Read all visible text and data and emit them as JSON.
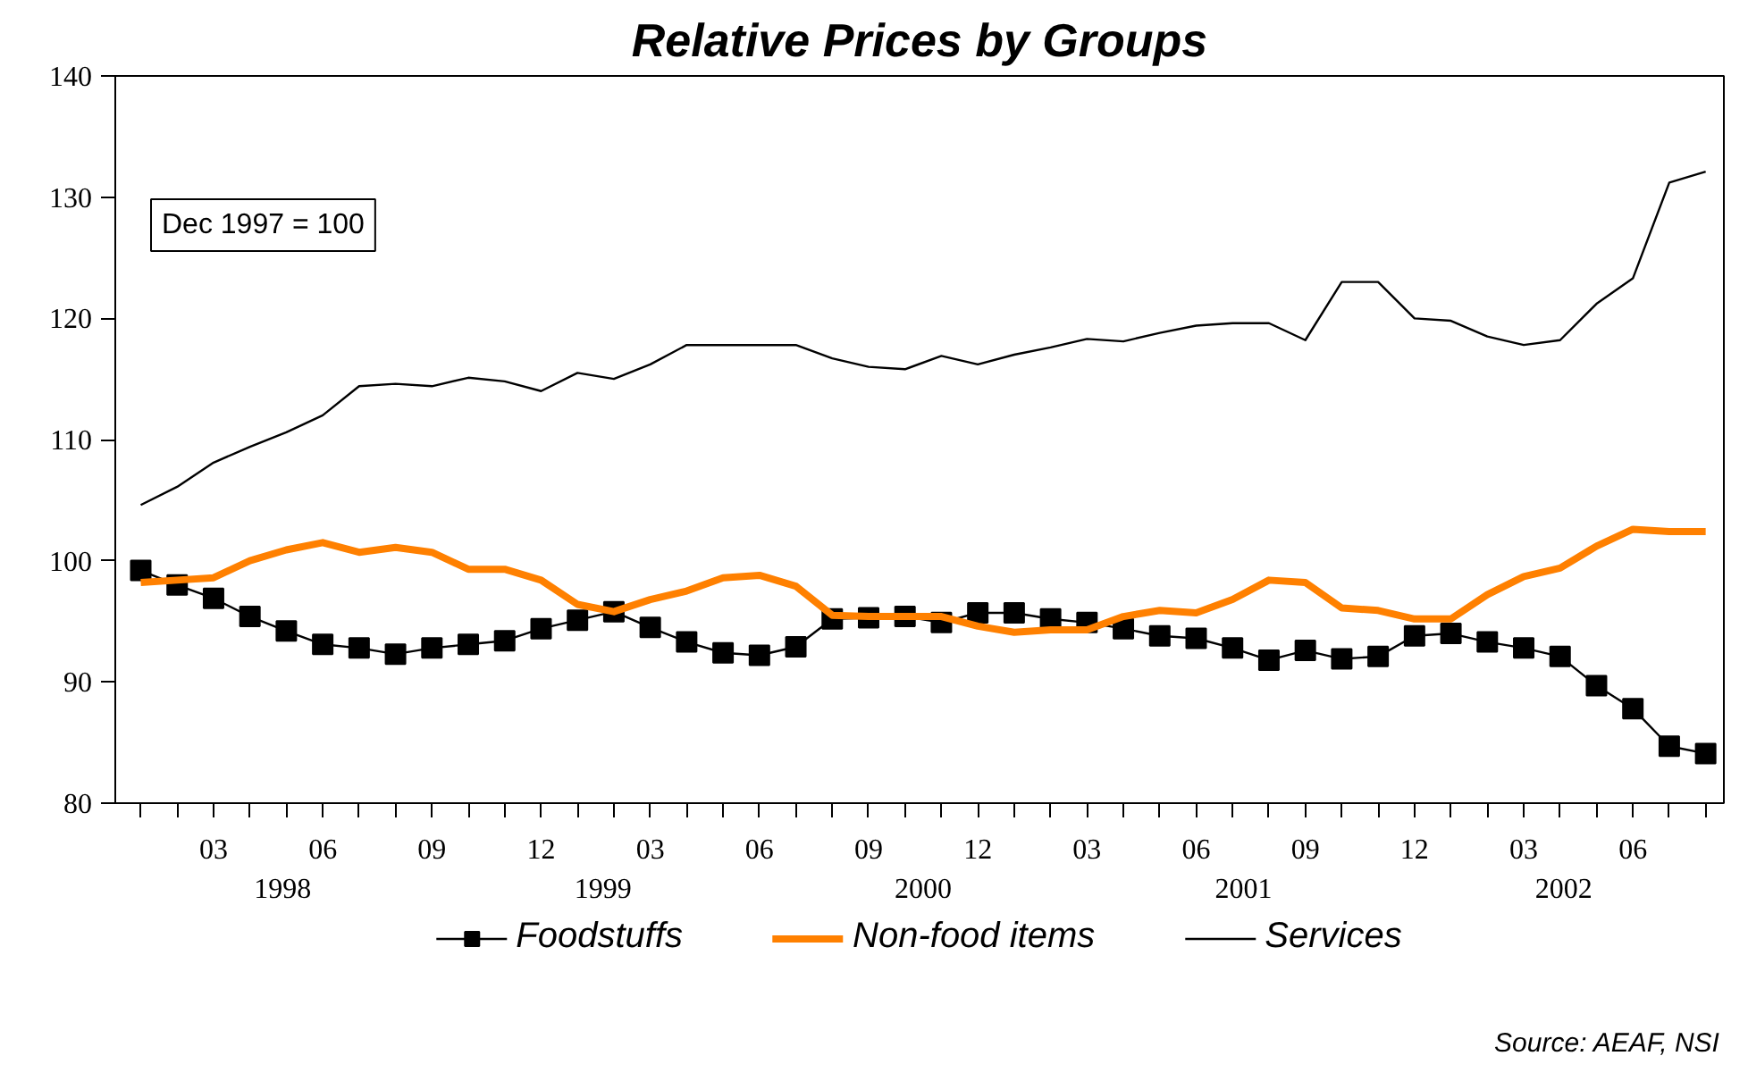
{
  "chart_data": {
    "type": "line",
    "title": "Relative Prices by Groups",
    "annotations": [
      "Dec 1997 = 100",
      "Source: AEAF, NSI",
      "1998",
      "1999",
      "2000",
      "2001",
      "2002"
    ],
    "categories": [
      null,
      null,
      "03",
      null,
      null,
      "06",
      null,
      null,
      "09",
      null,
      null,
      "12",
      null,
      null,
      "03",
      null,
      null,
      "06",
      null,
      null,
      "09",
      null,
      null,
      "12",
      null,
      null,
      "03",
      null,
      null,
      "06",
      null,
      null,
      "09",
      null,
      null,
      "12",
      null,
      null,
      "03",
      null,
      null,
      "06",
      null,
      null
    ],
    "ylim": [
      80,
      140
    ],
    "yticks": [
      80,
      90,
      100,
      110,
      120,
      130,
      140
    ],
    "grid": false,
    "legend": "bottom",
    "series": [
      {
        "name": "Foodstuffs",
        "color": "#000000",
        "marker": "square",
        "values": [
          99.2,
          98.0,
          96.9,
          95.4,
          94.2,
          93.1,
          92.8,
          92.3,
          92.8,
          93.1,
          93.4,
          94.4,
          95.1,
          95.8,
          94.5,
          93.3,
          92.4,
          92.2,
          92.9,
          95.2,
          95.3,
          95.4,
          94.9,
          95.7,
          95.7,
          95.2,
          94.9,
          94.4,
          93.8,
          93.6,
          92.8,
          91.8,
          92.6,
          91.9,
          92.1,
          93.8,
          94.0,
          93.3,
          92.8,
          92.1,
          89.7,
          87.8,
          84.7,
          84.1
        ]
      },
      {
        "name": "Non-food items",
        "color": "#ff8000",
        "values": [
          98.2,
          98.4,
          98.6,
          100.0,
          100.9,
          101.5,
          100.7,
          101.1,
          100.7,
          99.3,
          99.3,
          98.4,
          96.4,
          95.8,
          96.8,
          97.5,
          98.6,
          98.8,
          97.9,
          95.5,
          95.4,
          95.4,
          95.4,
          94.6,
          94.1,
          94.3,
          94.3,
          95.4,
          95.9,
          95.7,
          96.8,
          98.4,
          98.2,
          96.1,
          95.9,
          95.2,
          95.2,
          97.2,
          98.7,
          99.4,
          101.2,
          102.6,
          102.4,
          102.4
        ]
      },
      {
        "name": "Services",
        "color": "#000000",
        "values": [
          104.6,
          106.1,
          108.1,
          109.4,
          110.6,
          112.0,
          114.4,
          114.6,
          114.4,
          115.1,
          114.8,
          114.0,
          115.5,
          115.0,
          116.2,
          117.8,
          117.8,
          117.8,
          117.8,
          116.7,
          116.0,
          115.8,
          116.9,
          116.2,
          117.0,
          117.6,
          118.3,
          118.1,
          118.8,
          119.4,
          119.6,
          119.6,
          118.2,
          123.0,
          123.0,
          120.0,
          119.8,
          118.5,
          117.8,
          118.2,
          121.2,
          123.3,
          131.2,
          132.1
        ]
      }
    ]
  }
}
